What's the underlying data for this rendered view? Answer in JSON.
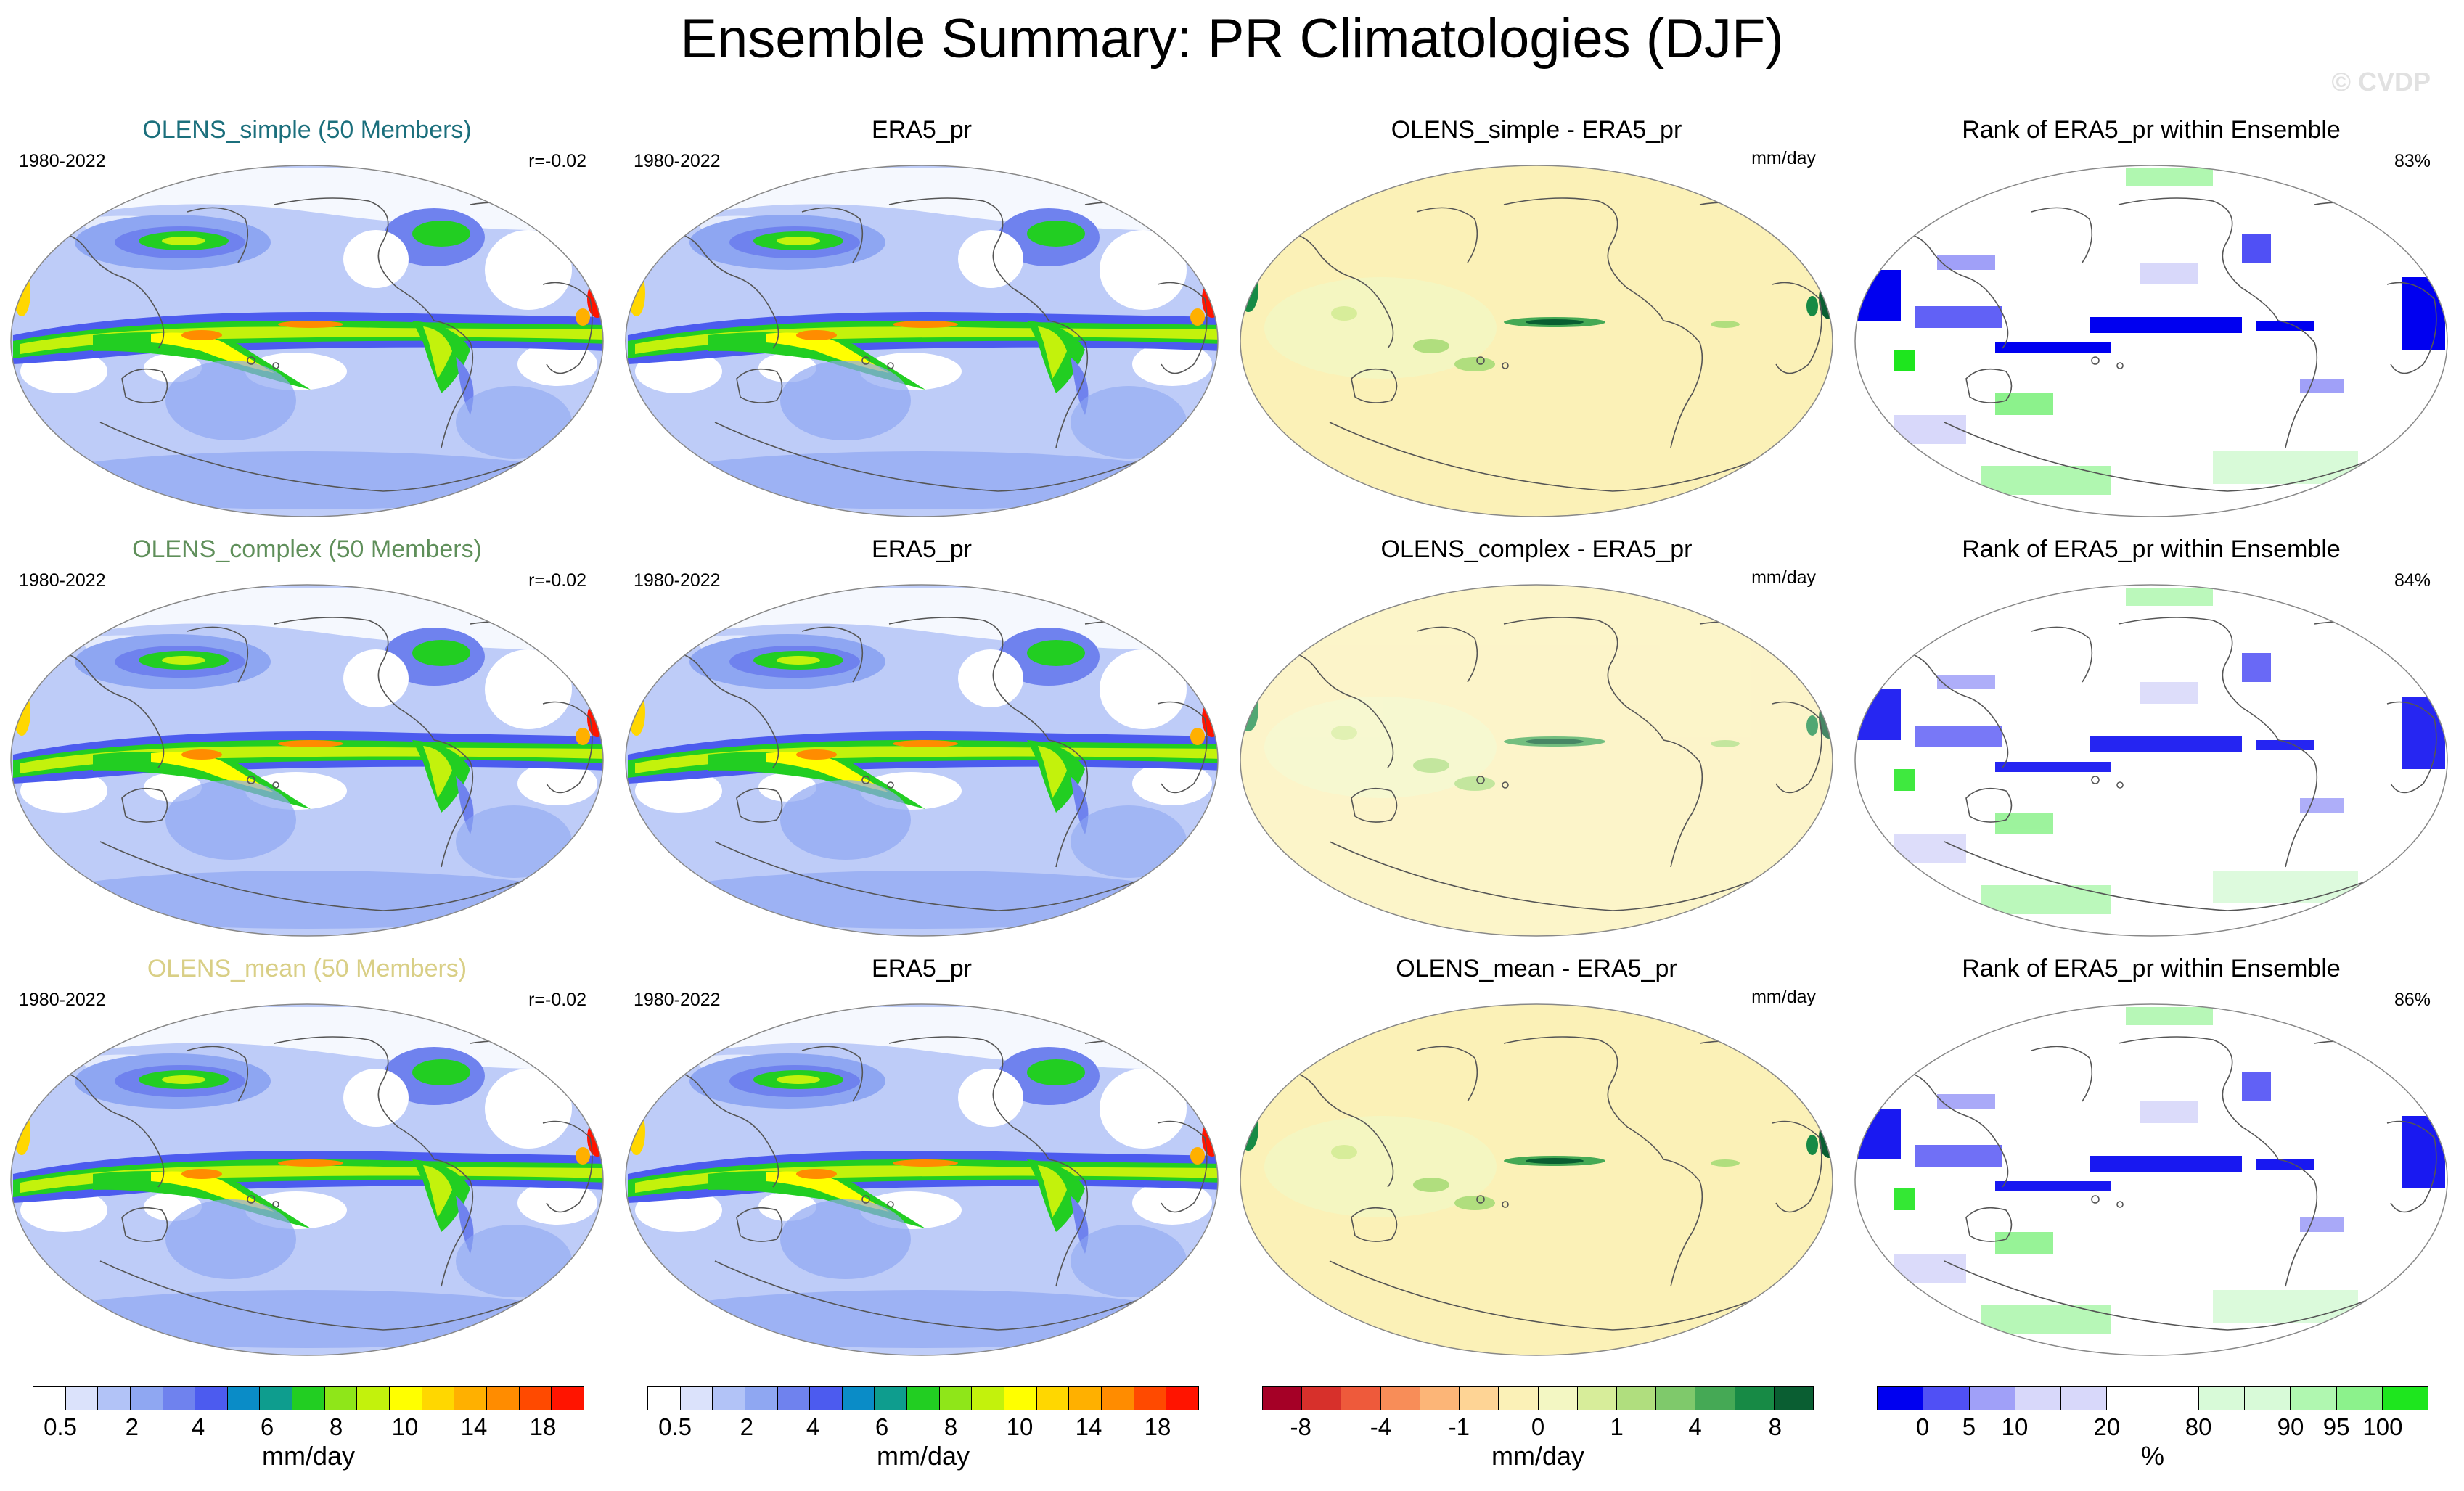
{
  "title": "Ensemble Summary: PR Climatologies (DJF)",
  "watermark": "© CVDP",
  "rows": [
    {
      "clim": {
        "title": "OLENS_simple (50 Members)",
        "title_color": "#1b6f7c",
        "period": "1980-2022",
        "stat": "r=-0.02"
      },
      "obs": {
        "title": "ERA5_pr",
        "period": "1980-2022"
      },
      "diff": {
        "title": "OLENS_simple - ERA5_pr",
        "units": "mm/day"
      },
      "rank": {
        "title": "Rank of ERA5_pr within Ensemble",
        "percent": "83%"
      }
    },
    {
      "clim": {
        "title": "OLENS_complex (50 Members)",
        "title_color": "#5f8f5a",
        "period": "1980-2022",
        "stat": "r=-0.02"
      },
      "obs": {
        "title": "ERA5_pr",
        "period": "1980-2022"
      },
      "diff": {
        "title": "OLENS_complex - ERA5_pr",
        "units": "mm/day"
      },
      "rank": {
        "title": "Rank of ERA5_pr within Ensemble",
        "percent": "84%"
      }
    },
    {
      "clim": {
        "title": "OLENS_mean (50 Members)",
        "title_color": "#d9cf86",
        "period": "1980-2022",
        "stat": "r=-0.02"
      },
      "obs": {
        "title": "ERA5_pr",
        "period": "1980-2022"
      },
      "diff": {
        "title": "OLENS_mean - ERA5_pr",
        "units": "mm/day"
      },
      "rank": {
        "title": "Rank of ERA5_pr within Ensemble",
        "percent": "86%"
      }
    }
  ],
  "colorbars": [
    {
      "unit": "mm/day",
      "colors": [
        "#ffffff",
        "#dbe2fb",
        "#b2c3f7",
        "#8fa7f2",
        "#6f82ee",
        "#4c5bef",
        "#0a8cc7",
        "#0e9d8e",
        "#22ce22",
        "#8fe619",
        "#c3f20c",
        "#ffff00",
        "#ffd700",
        "#ffb000",
        "#ff8c00",
        "#ff4a00",
        "#ff1400"
      ],
      "ticks": [
        "0.5",
        "2",
        "4",
        "6",
        "8",
        "10",
        "14",
        "18"
      ]
    },
    {
      "unit": "mm/day",
      "colors": [
        "#ffffff",
        "#dbe2fb",
        "#b2c3f7",
        "#8fa7f2",
        "#6f82ee",
        "#4c5bef",
        "#0a8cc7",
        "#0e9d8e",
        "#22ce22",
        "#8fe619",
        "#c3f20c",
        "#ffff00",
        "#ffd700",
        "#ffb000",
        "#ff8c00",
        "#ff4a00",
        "#ff1400"
      ],
      "ticks": [
        "0.5",
        "2",
        "4",
        "6",
        "8",
        "10",
        "14",
        "18"
      ]
    },
    {
      "unit": "mm/day",
      "colors": [
        "#a50026",
        "#d7302b",
        "#ee5a3b",
        "#f88d58",
        "#fcb577",
        "#fed495",
        "#fbf1b7",
        "#f3f7c3",
        "#d7ed9a",
        "#b0de7e",
        "#7fc96b",
        "#45a955",
        "#178a45",
        "#0a5e32"
      ],
      "ticks": [
        "-8",
        "-4",
        "-1",
        "0",
        "1",
        "4",
        "8"
      ]
    },
    {
      "unit": "%",
      "colors": [
        "#0000f0",
        "#5050f5",
        "#a0a0f8",
        "#d8d8fa",
        "#d8d8fa",
        "#ffffff",
        "#ffffff",
        "#d8fad8",
        "#d8fad8",
        "#b0f7b0",
        "#8cf28c",
        "#1ee61e"
      ],
      "ticks": [
        "0",
        "5",
        "10",
        "20",
        "80",
        "90",
        "95",
        "100"
      ]
    }
  ]
}
